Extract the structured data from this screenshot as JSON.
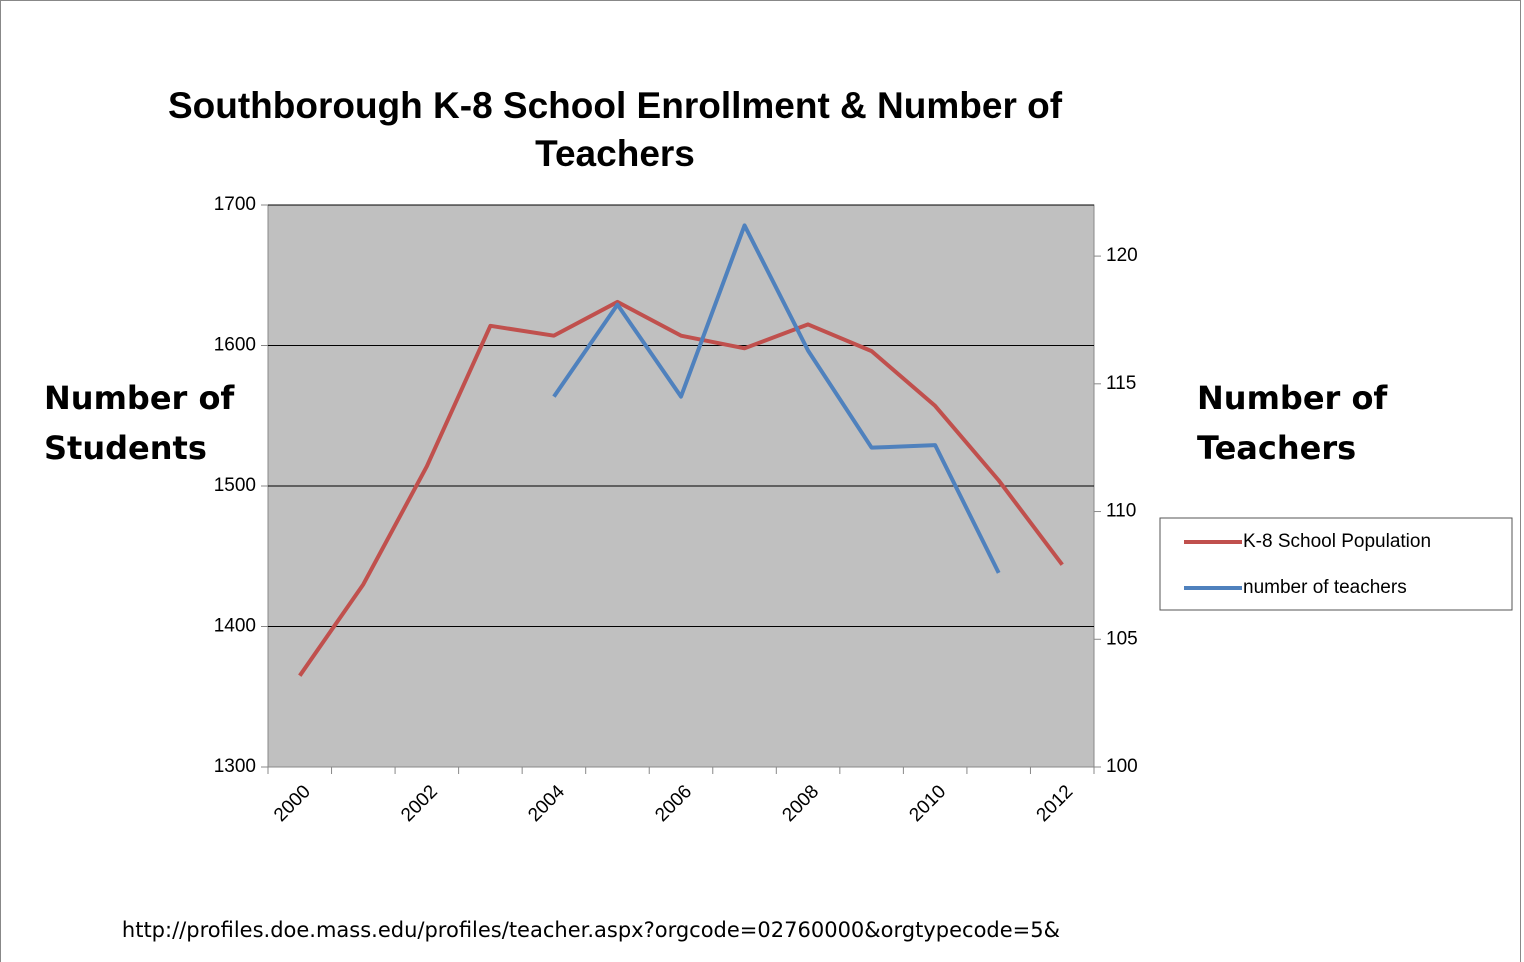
{
  "chart_data": {
    "type": "line",
    "title": "Southborough K-8 School Enrollment & Number of Teachers",
    "y_label": "Number of Students",
    "y2_label": "Number of Teachers",
    "source": "http://profiles.doe.mass.edu/profiles/teacher.aspx?orgcode=02760000&orgtypecode=5&",
    "categories": [
      "2000",
      null,
      "2002",
      null,
      "2004",
      null,
      "2006",
      null,
      "2008",
      null,
      "2010",
      null,
      "2012"
    ],
    "series": [
      {
        "name": "K-8 School Population",
        "color": "#c0504d",
        "values": [
          1365,
          1430,
          1514,
          1614,
          1607,
          1631,
          1607,
          1598,
          1615,
          1596,
          1557,
          1504,
          1444
        ]
      },
      {
        "name": "number of teachers",
        "color": "#4f81bd",
        "axis": "y2",
        "values": [
          null,
          null,
          null,
          null,
          114.5,
          118.1,
          114.5,
          121.2,
          116.3,
          112.5,
          112.6,
          107.6,
          null
        ]
      }
    ],
    "ylim": [
      1300,
      1700
    ],
    "yticks": [
      1300,
      1400,
      1500,
      1600,
      1700
    ],
    "y2lim": [
      100,
      122
    ],
    "y2ticks": [
      100,
      105,
      110,
      115,
      120
    ],
    "grid": true,
    "legend": "right",
    "plot_background": "#c0c0c0"
  }
}
